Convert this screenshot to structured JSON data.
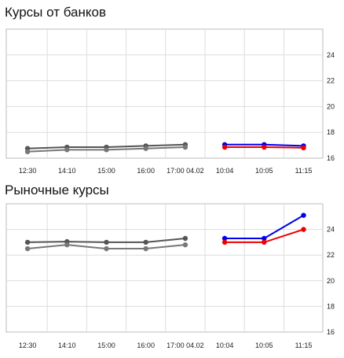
{
  "chart_data": [
    {
      "type": "line",
      "title": "Курсы от банков",
      "x_tick_labels": [
        "12:30",
        "14:10",
        "15:00",
        "16:00",
        "17:00 04.02",
        "10:04",
        "10:05",
        "11:15"
      ],
      "ylim": [
        16,
        26
      ],
      "y_ticks": [
        16,
        18,
        20,
        22,
        24
      ],
      "grid": true,
      "series": [
        {
          "color": "#555555",
          "values": [
            16.75,
            16.85,
            16.85,
            16.95,
            17.05,
            null,
            null,
            null
          ]
        },
        {
          "color": "#777777",
          "values": [
            16.5,
            16.65,
            16.65,
            16.75,
            16.85,
            null,
            null,
            null
          ]
        },
        {
          "color": "#0000ee",
          "values": [
            null,
            null,
            null,
            null,
            null,
            17.05,
            17.05,
            16.95
          ]
        },
        {
          "color": "#ee0000",
          "values": [
            null,
            null,
            null,
            null,
            null,
            16.85,
            16.85,
            16.8
          ]
        }
      ]
    },
    {
      "type": "line",
      "title": "Рыночные курсы",
      "x_tick_labels": [
        "12:30",
        "14:10",
        "15:00",
        "16:00",
        "17:00 04.02",
        "10:04",
        "10:05",
        "11:15"
      ],
      "ylim": [
        16,
        26
      ],
      "y_ticks": [
        16,
        18,
        20,
        22,
        24
      ],
      "grid": true,
      "series": [
        {
          "color": "#555555",
          "values": [
            23.0,
            23.05,
            23.0,
            23.0,
            23.3,
            null,
            null,
            null
          ]
        },
        {
          "color": "#777777",
          "values": [
            22.5,
            22.8,
            22.5,
            22.5,
            22.8,
            null,
            null,
            null
          ]
        },
        {
          "color": "#0000ee",
          "values": [
            null,
            null,
            null,
            null,
            null,
            23.3,
            23.3,
            25.1
          ]
        },
        {
          "color": "#ee0000",
          "values": [
            null,
            null,
            null,
            null,
            null,
            23.0,
            23.0,
            24.0
          ]
        }
      ]
    }
  ]
}
